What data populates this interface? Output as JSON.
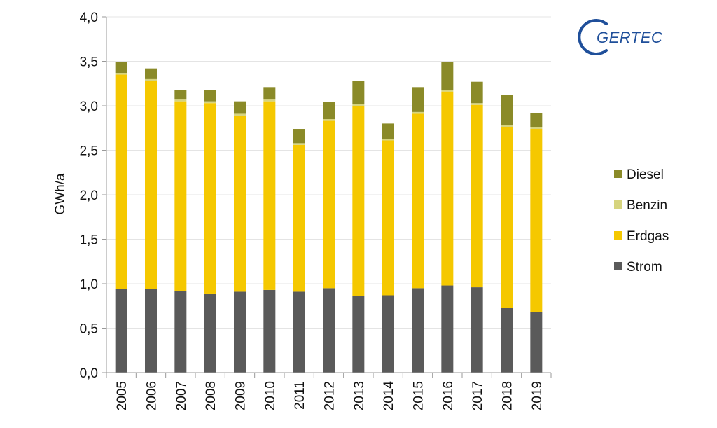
{
  "brand": {
    "logo_text": "GERTEC"
  },
  "chart_data": {
    "type": "bar",
    "stacked": true,
    "categories": [
      "2005",
      "2006",
      "2007",
      "2008",
      "2009",
      "2010",
      "2011",
      "2012",
      "2013",
      "2014",
      "2015",
      "2016",
      "2017",
      "2018",
      "2019"
    ],
    "series": [
      {
        "name": "Strom",
        "color": "#5a5a5a",
        "values": [
          0.94,
          0.94,
          0.92,
          0.89,
          0.91,
          0.93,
          0.91,
          0.95,
          0.86,
          0.87,
          0.95,
          0.98,
          0.96,
          0.73,
          0.68
        ]
      },
      {
        "name": "Erdgas",
        "color": "#f5c800",
        "values": [
          2.41,
          2.34,
          2.13,
          2.14,
          1.98,
          2.12,
          1.65,
          1.88,
          2.14,
          1.74,
          1.96,
          2.18,
          2.05,
          2.03,
          2.06
        ]
      },
      {
        "name": "Benzin",
        "color": "#d6d47e",
        "values": [
          0.02,
          0.02,
          0.02,
          0.02,
          0.02,
          0.02,
          0.02,
          0.02,
          0.02,
          0.02,
          0.02,
          0.02,
          0.02,
          0.02,
          0.02
        ]
      },
      {
        "name": "Diesel",
        "color": "#8a8a28",
        "values": [
          0.12,
          0.12,
          0.11,
          0.13,
          0.14,
          0.14,
          0.16,
          0.19,
          0.26,
          0.17,
          0.28,
          0.31,
          0.24,
          0.34,
          0.16
        ]
      }
    ],
    "title": "",
    "xlabel": "",
    "ylabel": "GWh/a",
    "ylim": [
      0,
      4
    ],
    "yticks": [
      "0,0",
      "0,5",
      "1,0",
      "1,5",
      "2,0",
      "2,5",
      "3,0",
      "3,5",
      "4,0"
    ],
    "grid": true,
    "legend_position": "right",
    "legend_order": [
      "Diesel",
      "Benzin",
      "Erdgas",
      "Strom"
    ]
  }
}
